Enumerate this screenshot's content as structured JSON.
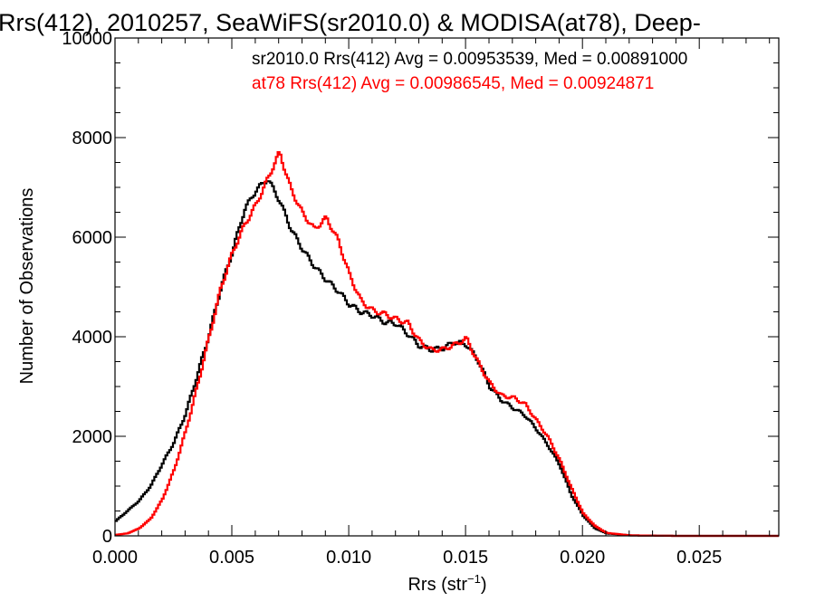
{
  "chart_data": {
    "type": "line",
    "title": "Rrs(412), 2010257, SeaWiFS(sr2010.0) & MODISA(at78), Deep-",
    "xlabel": "Rrs (str",
    "xlabel_sup": "−1",
    "xlabel_close": ")",
    "ylabel": "Number of Observations",
    "xlim": [
      0.0,
      0.0284
    ],
    "ylim": [
      0,
      10000
    ],
    "xticks": [
      0.0,
      0.005,
      0.01,
      0.015,
      0.02,
      0.025
    ],
    "xtick_labels": [
      "0.000",
      "0.005",
      "0.010",
      "0.015",
      "0.020",
      "0.025"
    ],
    "yticks": [
      0,
      2000,
      4000,
      6000,
      8000,
      10000
    ],
    "ytick_labels": [
      "0",
      "2000",
      "4000",
      "6000",
      "8000",
      "10000"
    ],
    "grid": false,
    "legend_position": "top-right",
    "series": [
      {
        "name": "sr2010.0",
        "color": "#000000",
        "annotation": "sr2010.0 Rrs(412) Avg = 0.00953539, Med = 0.00891000",
        "points": [
          [
            0.0,
            300
          ],
          [
            0.0005,
            500
          ],
          [
            0.001,
            700
          ],
          [
            0.0015,
            1000
          ],
          [
            0.002,
            1450
          ],
          [
            0.0025,
            1900
          ],
          [
            0.003,
            2500
          ],
          [
            0.0035,
            3300
          ],
          [
            0.004,
            4100
          ],
          [
            0.0045,
            5000
          ],
          [
            0.005,
            5700
          ],
          [
            0.0055,
            6500
          ],
          [
            0.006,
            6900
          ],
          [
            0.0065,
            7150
          ],
          [
            0.007,
            6750
          ],
          [
            0.0075,
            6200
          ],
          [
            0.008,
            5800
          ],
          [
            0.0085,
            5450
          ],
          [
            0.009,
            5150
          ],
          [
            0.0095,
            4900
          ],
          [
            0.01,
            4600
          ],
          [
            0.0105,
            4450
          ],
          [
            0.011,
            4400
          ],
          [
            0.0115,
            4300
          ],
          [
            0.012,
            4300
          ],
          [
            0.0125,
            4100
          ],
          [
            0.013,
            3850
          ],
          [
            0.0135,
            3750
          ],
          [
            0.014,
            3750
          ],
          [
            0.0145,
            3850
          ],
          [
            0.015,
            3800
          ],
          [
            0.0155,
            3500
          ],
          [
            0.016,
            3000
          ],
          [
            0.0165,
            2750
          ],
          [
            0.017,
            2600
          ],
          [
            0.0175,
            2450
          ],
          [
            0.018,
            2150
          ],
          [
            0.0185,
            1800
          ],
          [
            0.019,
            1400
          ],
          [
            0.0195,
            800
          ],
          [
            0.02,
            400
          ],
          [
            0.0205,
            150
          ],
          [
            0.021,
            50
          ],
          [
            0.022,
            10
          ],
          [
            0.024,
            0
          ],
          [
            0.0284,
            0
          ]
        ]
      },
      {
        "name": "at78",
        "color": "#ff0000",
        "annotation": "at78 Rrs(412) Avg = 0.00986545, Med = 0.00924871",
        "points": [
          [
            0.0,
            20
          ],
          [
            0.0005,
            50
          ],
          [
            0.001,
            150
          ],
          [
            0.0015,
            350
          ],
          [
            0.002,
            750
          ],
          [
            0.0025,
            1350
          ],
          [
            0.003,
            2150
          ],
          [
            0.0035,
            3050
          ],
          [
            0.004,
            4000
          ],
          [
            0.0045,
            4950
          ],
          [
            0.005,
            5650
          ],
          [
            0.0055,
            6200
          ],
          [
            0.006,
            6650
          ],
          [
            0.0065,
            7200
          ],
          [
            0.007,
            7750
          ],
          [
            0.0075,
            7000
          ],
          [
            0.008,
            6500
          ],
          [
            0.0085,
            6150
          ],
          [
            0.009,
            6350
          ],
          [
            0.0095,
            5900
          ],
          [
            0.01,
            5200
          ],
          [
            0.0105,
            4700
          ],
          [
            0.011,
            4550
          ],
          [
            0.0115,
            4500
          ],
          [
            0.012,
            4400
          ],
          [
            0.0125,
            4300
          ],
          [
            0.013,
            3900
          ],
          [
            0.0135,
            3700
          ],
          [
            0.014,
            3700
          ],
          [
            0.0145,
            3800
          ],
          [
            0.015,
            3950
          ],
          [
            0.0155,
            3500
          ],
          [
            0.016,
            3100
          ],
          [
            0.0165,
            2850
          ],
          [
            0.017,
            2800
          ],
          [
            0.0175,
            2650
          ],
          [
            0.018,
            2300
          ],
          [
            0.0185,
            1950
          ],
          [
            0.019,
            1500
          ],
          [
            0.0195,
            950
          ],
          [
            0.02,
            450
          ],
          [
            0.0205,
            200
          ],
          [
            0.021,
            60
          ],
          [
            0.022,
            10
          ],
          [
            0.024,
            0
          ],
          [
            0.0284,
            0
          ]
        ]
      }
    ]
  }
}
